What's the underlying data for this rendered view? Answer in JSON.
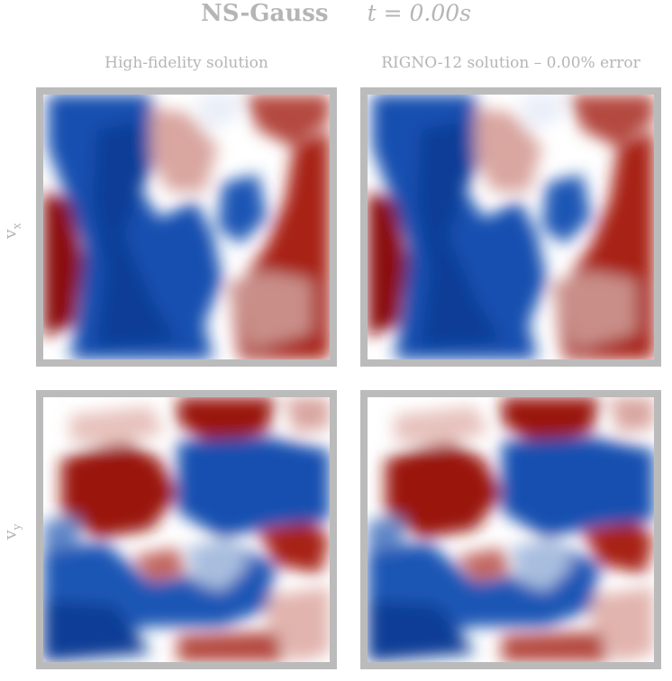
{
  "header": {
    "dataset": "NS-Gauss",
    "time": "t = 0.00s"
  },
  "columns": [
    {
      "label": "High-fidelity solution"
    },
    {
      "label": "RIGNO-12 solution – 0.00% error"
    }
  ],
  "rows": [
    {
      "label_main": "v",
      "label_sub": "x"
    },
    {
      "label_main": "v",
      "label_sub": "y"
    }
  ],
  "colors": {
    "positive": "#8b0a0a",
    "negative": "#0c3d96",
    "neutral": "#ffffff",
    "frame": "#bbbbbb",
    "text": "#b5b5b5"
  }
}
